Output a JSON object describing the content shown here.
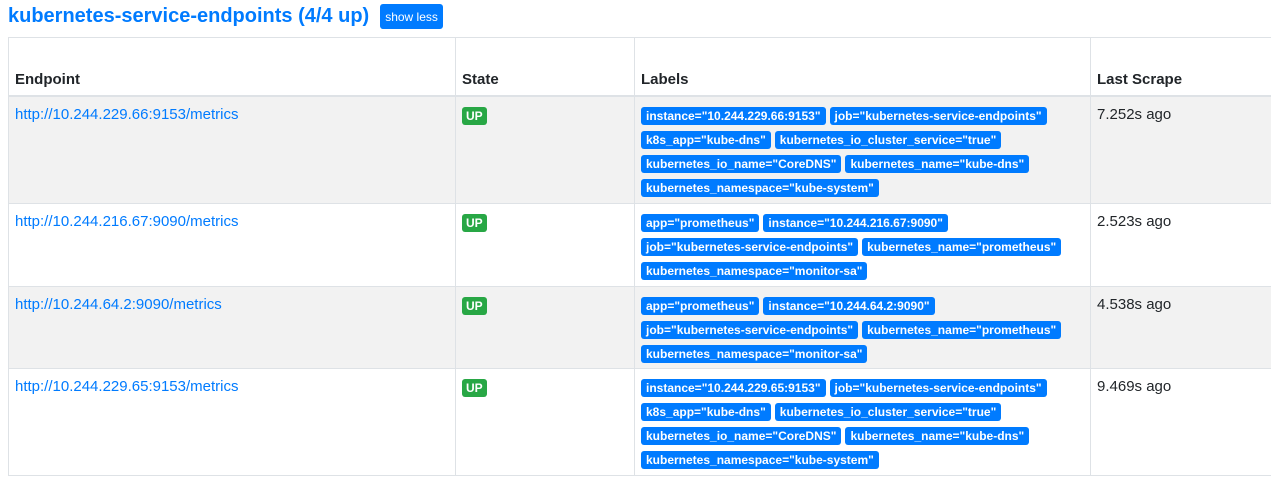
{
  "header": {
    "title": "kubernetes-service-endpoints (4/4 up)",
    "toggle_label": "show less"
  },
  "columns": [
    "Endpoint",
    "State",
    "Labels",
    "Last Scrape"
  ],
  "rows": [
    {
      "endpoint": "http://10.244.229.66:9153/metrics",
      "state": "UP",
      "labels": [
        "instance=\"10.244.229.66:9153\"",
        "job=\"kubernetes-service-endpoints\"",
        "k8s_app=\"kube-dns\"",
        "kubernetes_io_cluster_service=\"true\"",
        "kubernetes_io_name=\"CoreDNS\"",
        "kubernetes_name=\"kube-dns\"",
        "kubernetes_namespace=\"kube-system\""
      ],
      "last_scrape": "7.252s ago"
    },
    {
      "endpoint": "http://10.244.216.67:9090/metrics",
      "state": "UP",
      "labels": [
        "app=\"prometheus\"",
        "instance=\"10.244.216.67:9090\"",
        "job=\"kubernetes-service-endpoints\"",
        "kubernetes_name=\"prometheus\"",
        "kubernetes_namespace=\"monitor-sa\""
      ],
      "last_scrape": "2.523s ago"
    },
    {
      "endpoint": "http://10.244.64.2:9090/metrics",
      "state": "UP",
      "labels": [
        "app=\"prometheus\"",
        "instance=\"10.244.64.2:9090\"",
        "job=\"kubernetes-service-endpoints\"",
        "kubernetes_name=\"prometheus\"",
        "kubernetes_namespace=\"monitor-sa\""
      ],
      "last_scrape": "4.538s ago"
    },
    {
      "endpoint": "http://10.244.229.65:9153/metrics",
      "state": "UP",
      "labels": [
        "instance=\"10.244.229.65:9153\"",
        "job=\"kubernetes-service-endpoints\"",
        "k8s_app=\"kube-dns\"",
        "kubernetes_io_cluster_service=\"true\"",
        "kubernetes_io_name=\"CoreDNS\"",
        "kubernetes_name=\"kube-dns\"",
        "kubernetes_namespace=\"kube-system\""
      ],
      "last_scrape": "9.469s ago"
    }
  ],
  "colors": {
    "accent": "#007bff",
    "up": "#28a745"
  }
}
